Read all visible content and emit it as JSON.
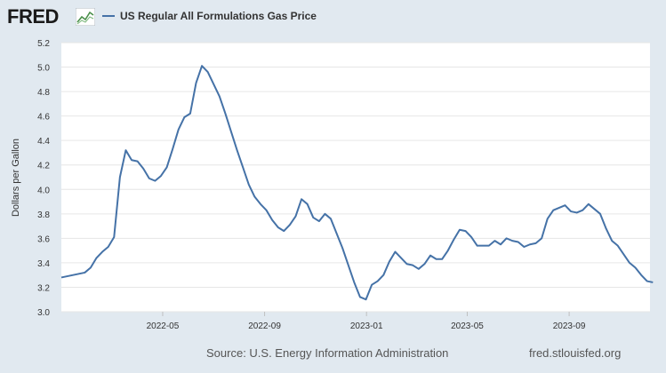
{
  "header": {
    "logo_text": "FRED",
    "legend_label": "US Regular All Formulations Gas Price",
    "series_color": "#4572a7"
  },
  "footer": {
    "source": "Source: U.S. Energy Information Administration",
    "url": "fred.stlouisfed.org"
  },
  "chart_data": {
    "type": "line",
    "title": "US Regular All Formulations Gas Price",
    "xlabel": "",
    "ylabel": "Dollars per Gallon",
    "ylim": [
      3.0,
      5.2
    ],
    "yticks": [
      "3.0",
      "3.2",
      "3.4",
      "3.6",
      "3.8",
      "4.0",
      "4.2",
      "4.4",
      "4.6",
      "4.8",
      "5.0",
      "5.2"
    ],
    "xticks": [
      {
        "label": "2022-05",
        "value": 17.3
      },
      {
        "label": "2022-09",
        "value": 34.7
      },
      {
        "label": "2023-01",
        "value": 52.1
      },
      {
        "label": "2023-05",
        "value": 69.3
      },
      {
        "label": "2023-09",
        "value": 86.7
      }
    ],
    "xlim": [
      0,
      100.5
    ],
    "series": [
      {
        "name": "US Regular All Formulations Gas Price",
        "values": [
          3.28,
          3.29,
          3.3,
          3.31,
          3.32,
          3.36,
          3.44,
          3.49,
          3.53,
          3.61,
          4.1,
          4.32,
          4.24,
          4.23,
          4.17,
          4.09,
          4.07,
          4.11,
          4.18,
          4.33,
          4.49,
          4.59,
          4.62,
          4.87,
          5.01,
          4.96,
          4.86,
          4.76,
          4.62,
          4.47,
          4.32,
          4.18,
          4.04,
          3.94,
          3.88,
          3.83,
          3.75,
          3.69,
          3.66,
          3.71,
          3.78,
          3.92,
          3.88,
          3.77,
          3.74,
          3.8,
          3.76,
          3.64,
          3.52,
          3.38,
          3.24,
          3.12,
          3.1,
          3.22,
          3.25,
          3.3,
          3.41,
          3.49,
          3.44,
          3.39,
          3.38,
          3.35,
          3.39,
          3.46,
          3.43,
          3.43,
          3.5,
          3.59,
          3.67,
          3.66,
          3.61,
          3.54,
          3.54,
          3.54,
          3.58,
          3.55,
          3.6,
          3.58,
          3.57,
          3.53,
          3.55,
          3.56,
          3.6,
          3.76,
          3.83,
          3.85,
          3.87,
          3.82,
          3.81,
          3.83,
          3.88,
          3.84,
          3.8,
          3.68,
          3.58,
          3.54,
          3.47,
          3.4,
          3.36,
          3.3,
          3.25,
          3.24
        ]
      }
    ],
    "grid": "horizontal"
  }
}
